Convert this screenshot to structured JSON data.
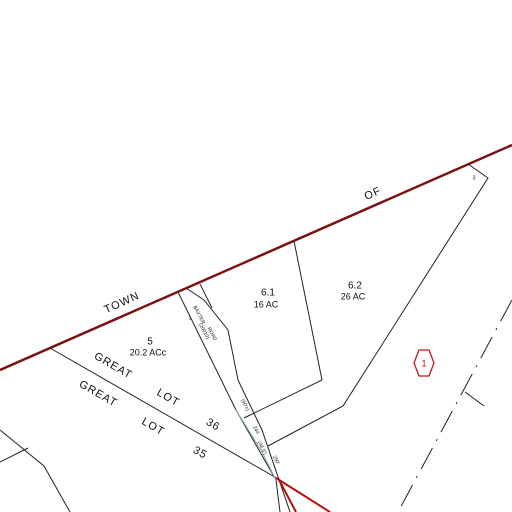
{
  "labels": {
    "town": "TOWN",
    "of": "OF"
  },
  "parcels": [
    {
      "id": "6.1",
      "area": "16 AC"
    },
    {
      "id": "6.2",
      "area": "26 AC"
    },
    {
      "id": "5",
      "area": "20.2 ACc"
    }
  ],
  "lots": [
    {
      "word": "GREAT",
      "lot": "LOT",
      "number": "36"
    },
    {
      "word": "GREAT",
      "lot": "LOT",
      "number": "35"
    }
  ],
  "road": {
    "name": "BAXTER",
    "kind": "ROAD",
    "code": "(20010)",
    "dims": [
      "(90'±)",
      "244",
      "(46.5')",
      "250'"
    ]
  },
  "corner_marks": [
    "3",
    "1"
  ],
  "map_number": "1"
}
